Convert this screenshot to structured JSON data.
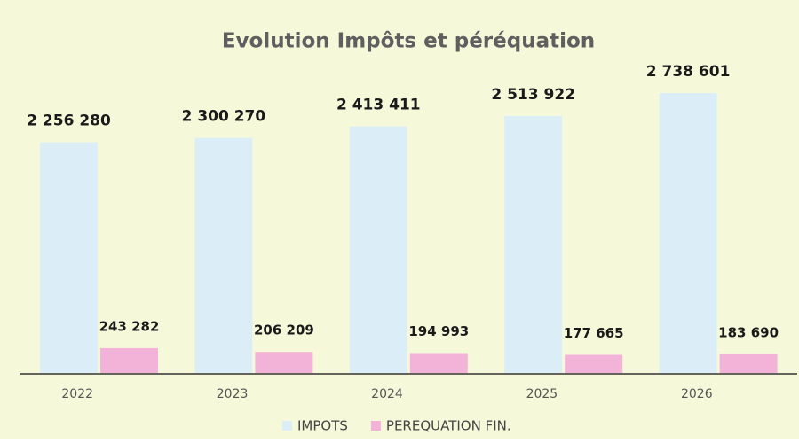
{
  "chart_data": {
    "type": "bar",
    "title": "Evolution Impôts et péréquation",
    "categories": [
      "2022",
      "2023",
      "2024",
      "2025",
      "2026"
    ],
    "series": [
      {
        "name": "IMPOTS",
        "color": "#dbeef8",
        "values": [
          2256280,
          2300270,
          2413411,
          2513922,
          2738601
        ],
        "value_labels": [
          "2 256 280",
          "2 300 270",
          "2 413 411",
          "2 513 922",
          "2 738 601"
        ]
      },
      {
        "name": "PEREQUATION FIN.",
        "color": "#f3b3d8",
        "values": [
          243282,
          206209,
          194993,
          177665,
          183690
        ],
        "value_labels": [
          "243 282",
          "206 209",
          "194 993",
          "177 665",
          "183 690"
        ]
      }
    ],
    "legend": "bottom"
  }
}
